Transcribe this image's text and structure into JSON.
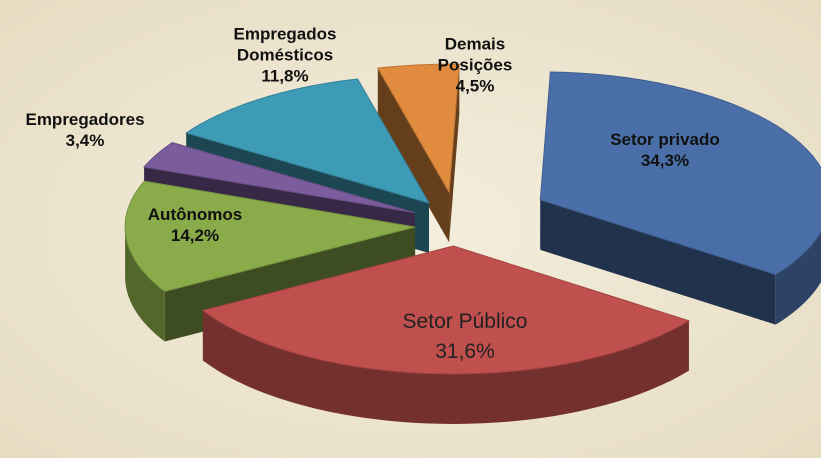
{
  "chart_data": {
    "type": "pie",
    "categories": [
      "Setor privado",
      "Setor Público",
      "Autônomos",
      "Empregadores",
      "Empregados Domésticos",
      "Demais Posições"
    ],
    "values": [
      34.3,
      31.6,
      14.2,
      3.4,
      11.8,
      4.5
    ],
    "value_labels": [
      "34,3%",
      "31,6%",
      "14,2%",
      "3,4%",
      "11,8%",
      "4,5%"
    ],
    "colors": [
      "#4a6fa8",
      "#c0504d",
      "#8aab4a",
      "#7b5c9c",
      "#3e9bb6",
      "#e08b3e"
    ]
  }
}
